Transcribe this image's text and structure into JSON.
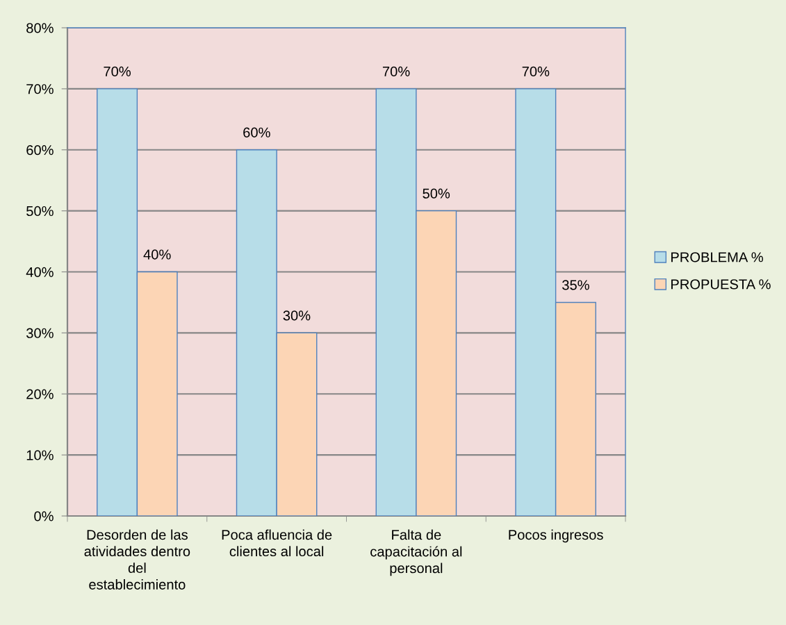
{
  "chart_data": {
    "type": "bar",
    "categories": [
      "Desorden de las\natividades dentro\ndel\nestablecimiento",
      "Poca afluencia de\nclientes al local",
      "Falta de\ncapacitación al\npersonal",
      "Pocos ingresos"
    ],
    "series": [
      {
        "name": "PROBLEMA %",
        "color": "#b7dde8",
        "values": [
          70,
          60,
          70,
          70
        ],
        "value_labels": [
          "70%",
          "60%",
          "70%",
          "70%"
        ]
      },
      {
        "name": "PROPUESTA %",
        "color": "#fcd5b5",
        "values": [
          40,
          30,
          50,
          35
        ],
        "value_labels": [
          "40%",
          "30%",
          "50%",
          "35%"
        ]
      }
    ],
    "ylim": [
      0,
      80
    ],
    "yticks": [
      {
        "value": 0,
        "label": "0%"
      },
      {
        "value": 10,
        "label": "10%"
      },
      {
        "value": 20,
        "label": "20%"
      },
      {
        "value": 30,
        "label": "30%"
      },
      {
        "value": 40,
        "label": "40%"
      },
      {
        "value": 50,
        "label": "50%"
      },
      {
        "value": 60,
        "label": "60%"
      },
      {
        "value": 70,
        "label": "70%"
      },
      {
        "value": 80,
        "label": "80%"
      }
    ],
    "grid": "y",
    "legend": "right"
  }
}
